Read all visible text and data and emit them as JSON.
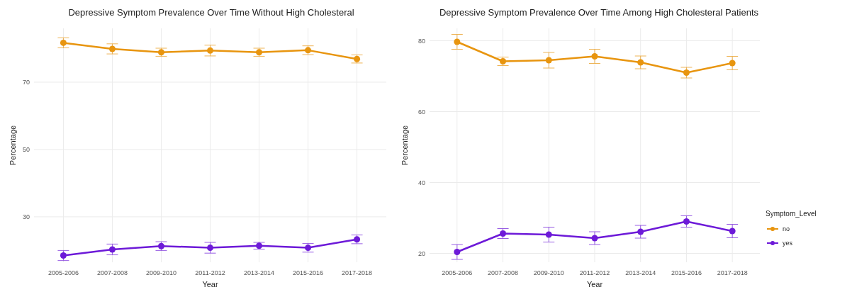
{
  "chart_data": [
    {
      "type": "line",
      "title": "Depressive Symptom Prevalence Over Time Without High Cholesteral",
      "xlabel": "Year",
      "ylabel": "Percentage",
      "categories": [
        "2005-2006",
        "2007-2008",
        "2009-2010",
        "2011-2012",
        "2013-2014",
        "2015-2016",
        "2017-2018"
      ],
      "ylim": [
        16.5,
        86
      ],
      "yticks": [
        30,
        50,
        70
      ],
      "grid": true,
      "marker": "circle",
      "legend": false,
      "series": [
        {
          "color": "#e8950f",
          "values": [
            81.7,
            79.9,
            78.9,
            79.4,
            78.9,
            79.5,
            76.9
          ],
          "errors": [
            1.5,
            1.5,
            1.2,
            1.6,
            1.2,
            1.3,
            1.2
          ]
        },
        {
          "color": "#6d1ad8",
          "values": [
            18.5,
            20.3,
            21.3,
            20.8,
            21.4,
            20.8,
            23.3
          ],
          "errors": [
            1.5,
            1.6,
            1.3,
            1.6,
            1.0,
            1.3,
            1.3
          ]
        }
      ]
    },
    {
      "type": "line",
      "title": "Depressive Symptom Prevalence Over Time Among High Cholesteral Patients",
      "xlabel": "Year",
      "ylabel": "Percentage",
      "legend_title": "Symptom_Level",
      "categories": [
        "2005-2006",
        "2007-2008",
        "2009-2010",
        "2011-2012",
        "2013-2014",
        "2015-2016",
        "2017-2018"
      ],
      "ylim": [
        17.5,
        83.5
      ],
      "yticks": [
        20,
        40,
        60,
        80
      ],
      "grid": true,
      "marker": "circle",
      "legend": "right",
      "series": [
        {
          "name": "no",
          "color": "#e8950f",
          "values": [
            79.7,
            74.2,
            74.5,
            75.6,
            73.9,
            71.0,
            73.7
          ],
          "errors": [
            2.1,
            1.2,
            2.2,
            2.0,
            1.8,
            1.5,
            1.9
          ]
        },
        {
          "name": "yes",
          "color": "#6d1ad8",
          "values": [
            20.4,
            25.6,
            25.3,
            24.3,
            26.1,
            29.0,
            26.3
          ],
          "errors": [
            2.1,
            1.4,
            2.1,
            1.8,
            1.8,
            1.6,
            1.9
          ]
        }
      ]
    }
  ]
}
